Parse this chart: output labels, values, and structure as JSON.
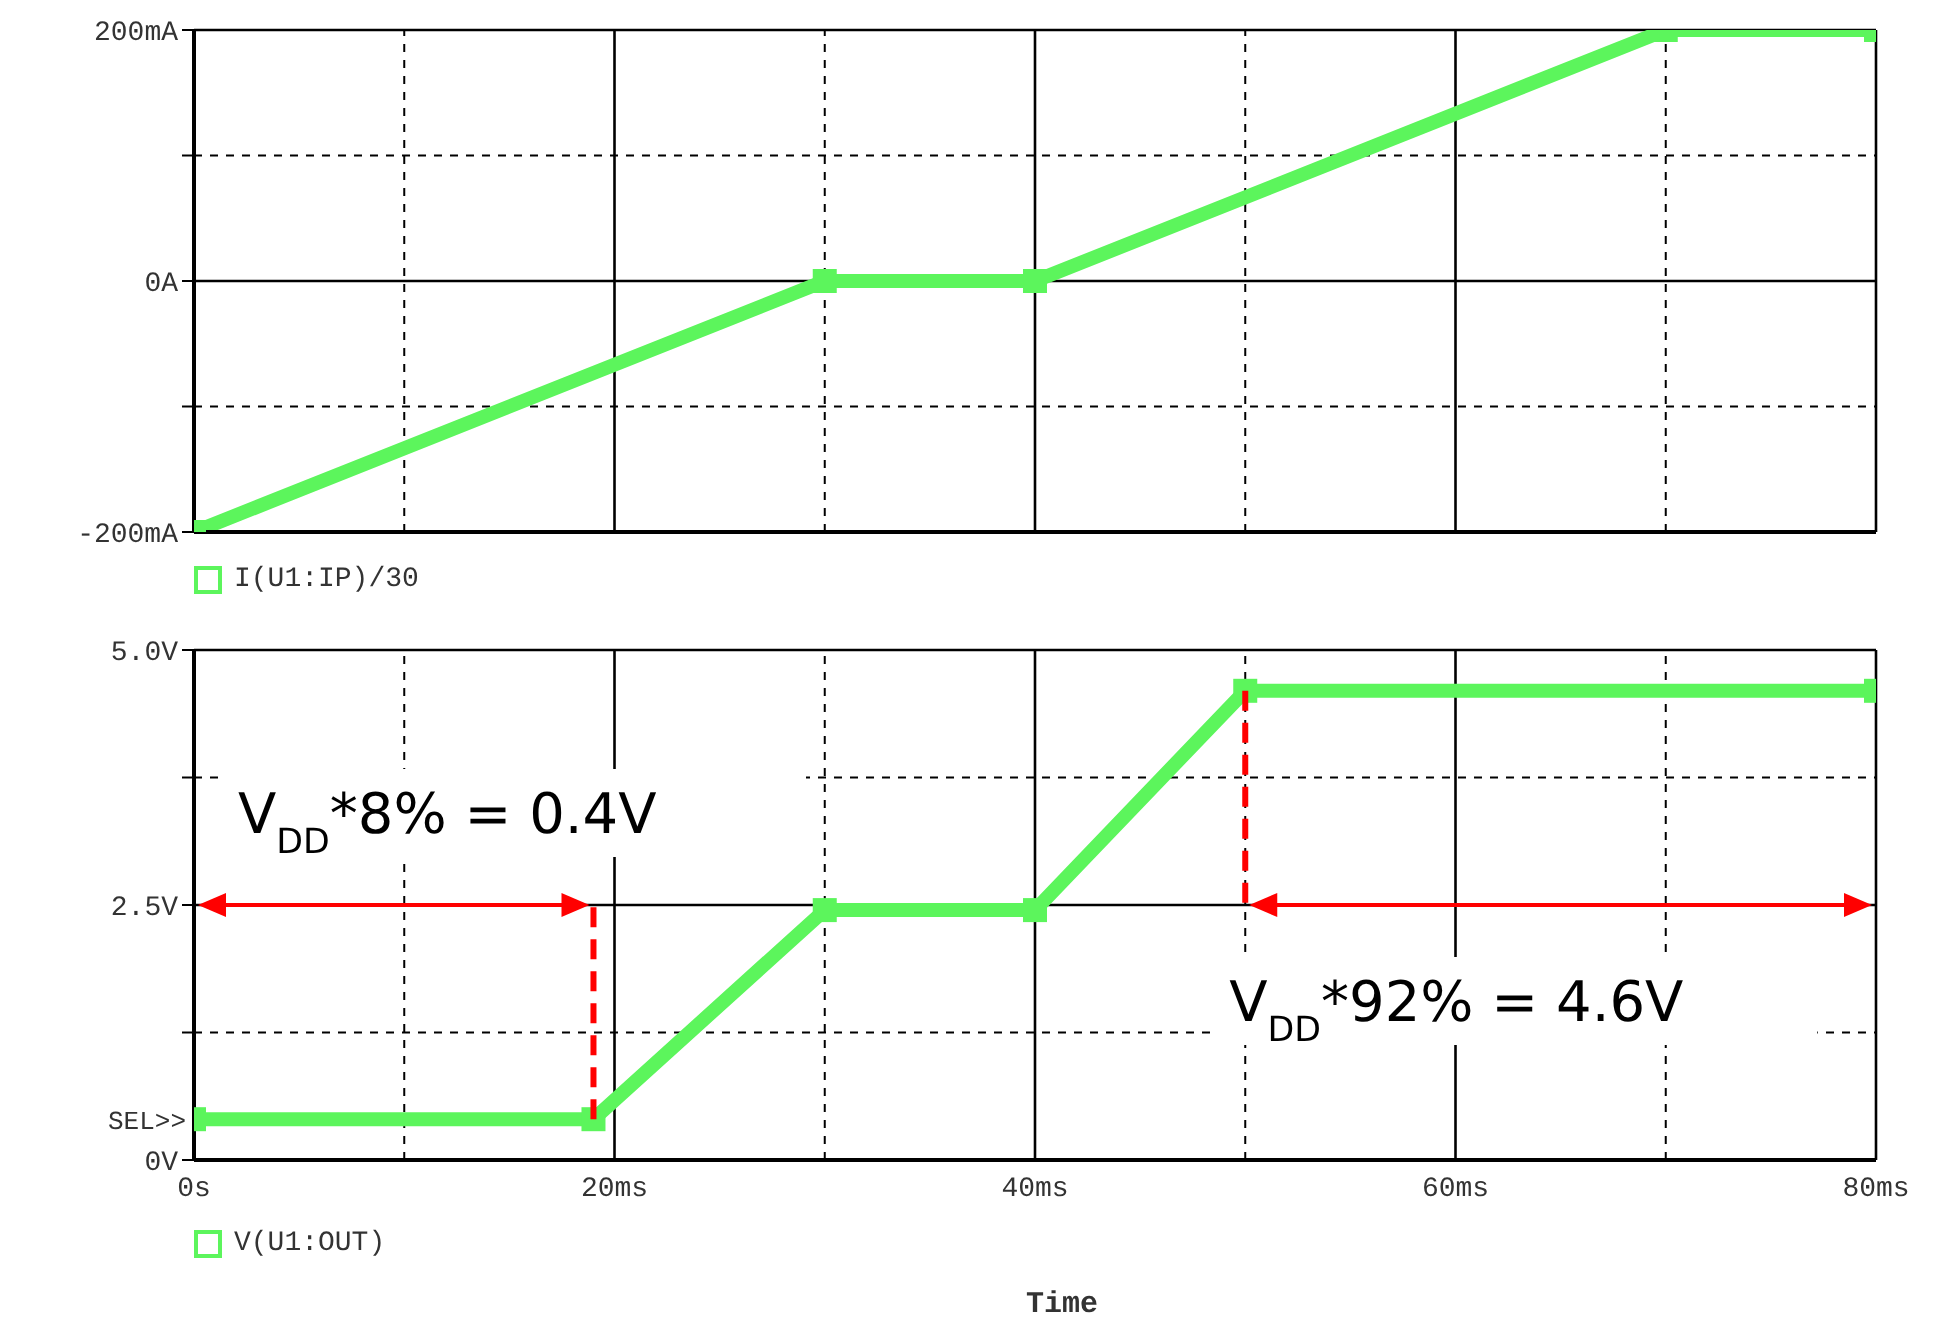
{
  "chart_data": [
    {
      "type": "line",
      "xlim": [
        0,
        80
      ],
      "xticks": [
        0,
        {
          "value": 10,
          "label": null
        },
        20,
        {
          "value": 30,
          "label": null
        },
        40,
        {
          "value": 50,
          "label": null
        },
        60,
        {
          "value": 70,
          "label": null
        },
        80
      ],
      "ylim": [
        -200,
        200
      ],
      "yticks": [
        {
          "value": -200,
          "label": "-200mA"
        },
        {
          "value": -100,
          "label": null
        },
        {
          "value": 0,
          "label": "0A"
        },
        {
          "value": 100,
          "label": null
        },
        {
          "value": 200,
          "label": "200mA"
        }
      ],
      "tick_labels": "y",
      "grid": true,
      "legend": "bottom left",
      "marker": "square",
      "series": [
        {
          "name": "I(U1:IP)/30",
          "color": "#5cf55c",
          "x": [
            0,
            30,
            40,
            70,
            80
          ],
          "values": [
            -200,
            0,
            0,
            200,
            200
          ]
        }
      ]
    },
    {
      "type": "line",
      "xlim": [
        0,
        80
      ],
      "xticks": [
        {
          "value": 0,
          "label": "0s"
        },
        {
          "value": 10,
          "label": null
        },
        {
          "value": 20,
          "label": "20ms"
        },
        {
          "value": 30,
          "label": null
        },
        {
          "value": 40,
          "label": "40ms"
        },
        {
          "value": 50,
          "label": null
        },
        {
          "value": 60,
          "label": "60ms"
        },
        {
          "value": 70,
          "label": null
        },
        {
          "value": 80,
          "label": "80ms"
        }
      ],
      "ylim": [
        0,
        5
      ],
      "yticks": [
        {
          "value": 0,
          "label": "0V"
        },
        {
          "value": 1.25,
          "label": null
        },
        {
          "value": 2.5,
          "label": "2.5V"
        },
        {
          "value": 3.75,
          "label": null
        },
        {
          "value": 5,
          "label": "5.0V"
        }
      ],
      "xlabel": "Time",
      "grid": true,
      "legend": "bottom left",
      "marker": "square",
      "series": [
        {
          "name": "V(U1:OUT)",
          "color": "#5cf55c",
          "x": [
            0,
            19,
            30,
            40,
            50,
            80
          ],
          "values": [
            0.4,
            0.4,
            2.45,
            2.45,
            4.6,
            4.6
          ]
        }
      ],
      "annotations": [
        "SEL>>",
        "V$_{DD}$*8% = 0.4V",
        "V$_{DD}$*92% = 4.6V"
      ],
      "ref_lines": [
        {
          "axis": "x",
          "value": 19,
          "color": "#ff0000",
          "line_style": "dashed"
        },
        {
          "axis": "x",
          "value": 50,
          "color": "#ff0000",
          "line_style": "dashed"
        }
      ]
    }
  ]
}
